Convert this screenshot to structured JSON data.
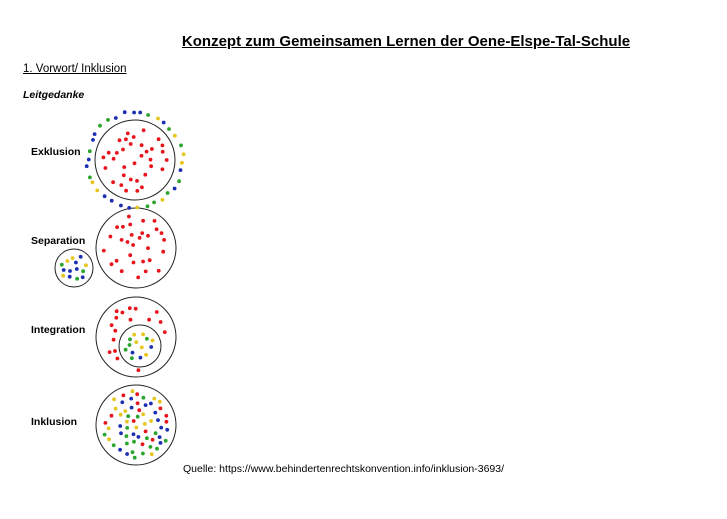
{
  "document": {
    "title": "Konzept zum Gemeinsamen Lernen der Oene-Elspe-Tal-Schule",
    "section_heading": "1. Vorwort/ Inklusion",
    "subheading": "Leitgedanke",
    "source": "Quelle: https://www.behindertenrechtskonvention.info/inklusion-3693/"
  },
  "stages": [
    {
      "label": "Exklusion"
    },
    {
      "label": "Separation"
    },
    {
      "label": "Integration"
    },
    {
      "label": "Inklusion"
    }
  ],
  "colors": {
    "red": "#e8141b",
    "blue": "#1b2fb0",
    "green": "#2aa52c",
    "yellow": "#e6c51c",
    "circle_stroke": "#222222"
  }
}
